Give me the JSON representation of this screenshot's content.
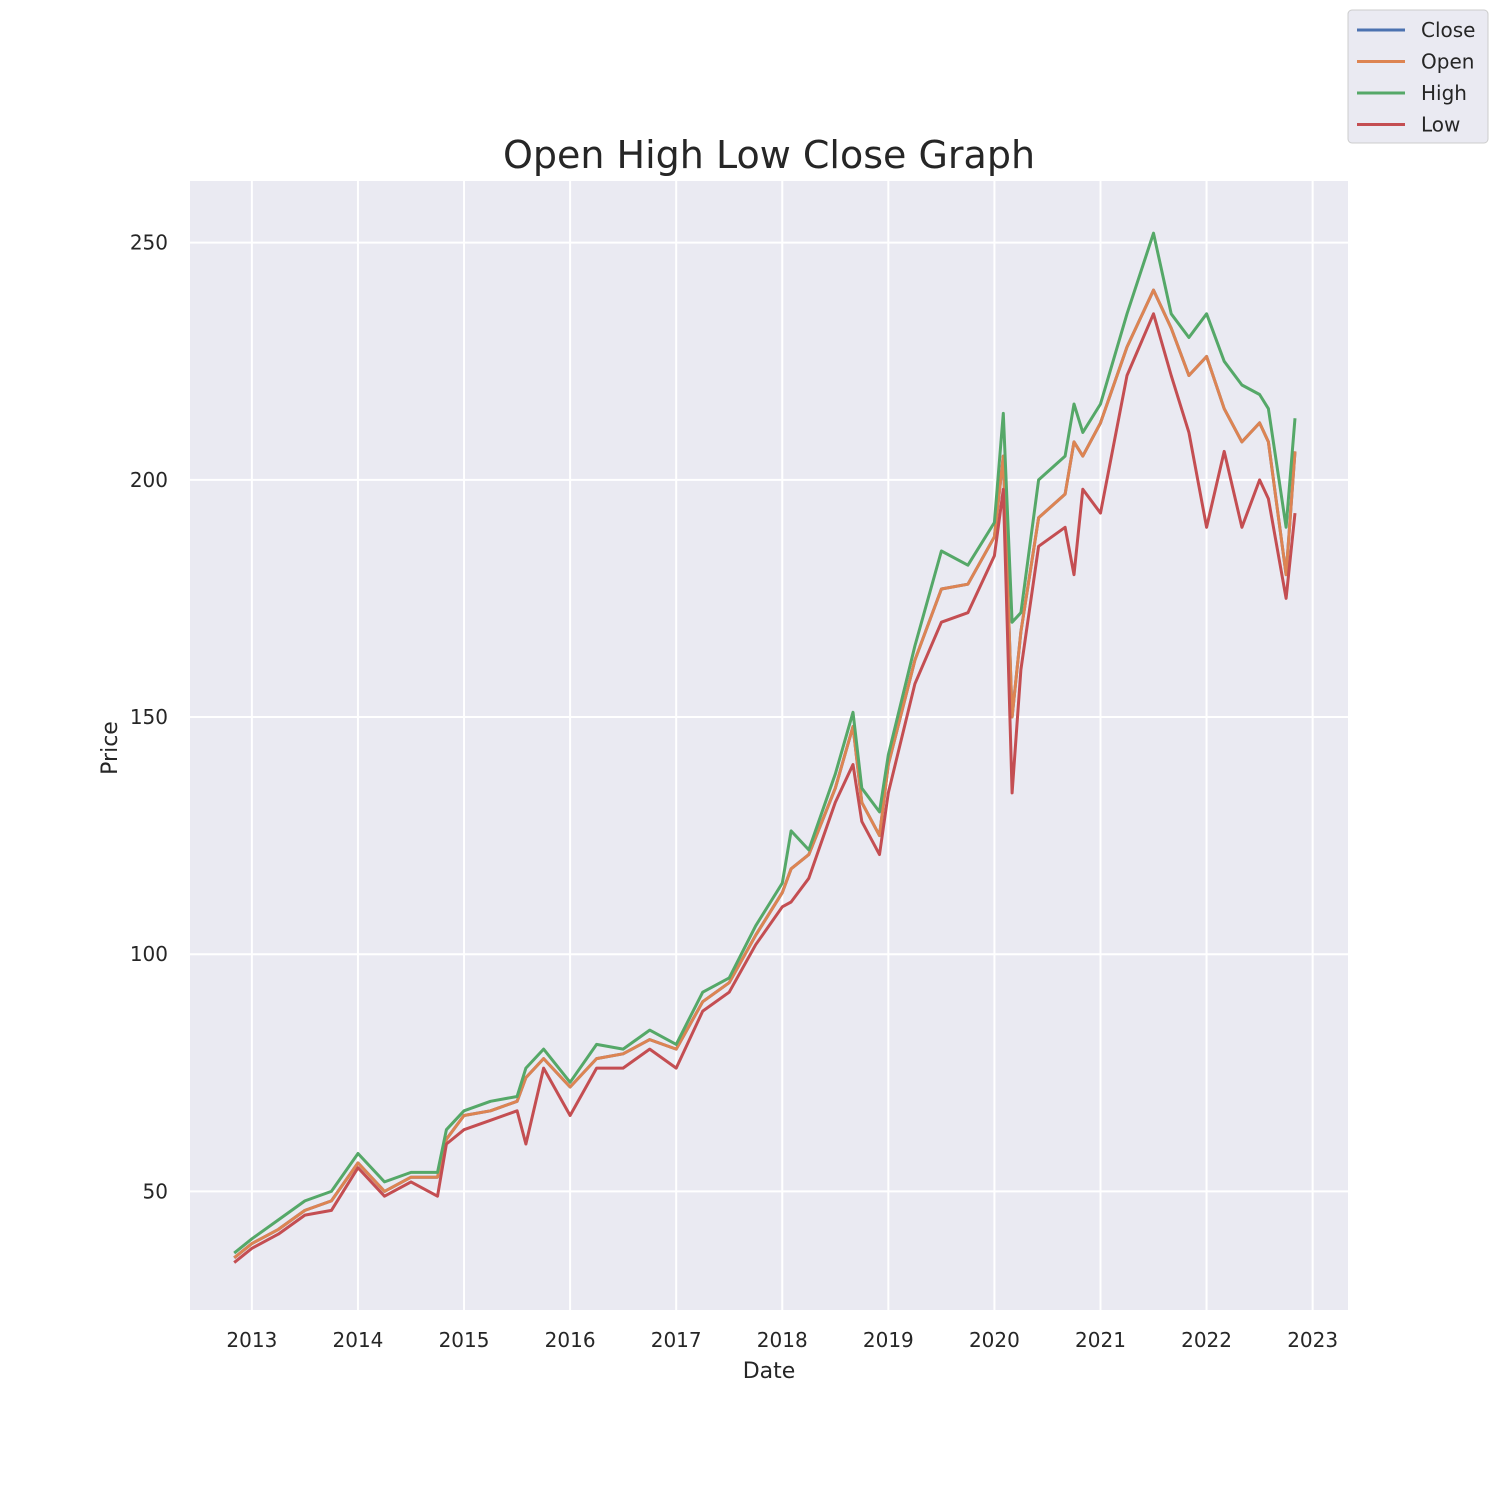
{
  "chart_data": {
    "type": "line",
    "title": "Open High Low Close Graph",
    "xlabel": "Date",
    "ylabel": "Price",
    "xlim": [
      "2012-06-01",
      "2023-05-01"
    ],
    "ylim": [
      25,
      263
    ],
    "x_ticks": [
      "2013",
      "2014",
      "2015",
      "2016",
      "2017",
      "2018",
      "2019",
      "2020",
      "2021",
      "2022",
      "2023"
    ],
    "y_ticks": [
      50,
      100,
      150,
      200,
      250
    ],
    "grid": true,
    "legend_position": "top-right",
    "x": [
      "2012-11",
      "2013-01",
      "2013-04",
      "2013-07",
      "2013-10",
      "2014-01",
      "2014-04",
      "2014-07",
      "2014-10",
      "2014-11",
      "2015-01",
      "2015-04",
      "2015-07",
      "2015-08",
      "2015-10",
      "2016-01",
      "2016-04",
      "2016-07",
      "2016-10",
      "2017-01",
      "2017-04",
      "2017-07",
      "2017-10",
      "2018-01",
      "2018-02",
      "2018-04",
      "2018-07",
      "2018-09",
      "2018-10",
      "2018-12",
      "2019-01",
      "2019-04",
      "2019-07",
      "2019-10",
      "2020-01",
      "2020-02",
      "2020-03",
      "2020-04",
      "2020-06",
      "2020-09",
      "2020-10",
      "2020-11",
      "2021-01",
      "2021-04",
      "2021-07",
      "2021-09",
      "2021-11",
      "2022-01",
      "2022-03",
      "2022-05",
      "2022-07",
      "2022-08",
      "2022-10",
      "2022-11"
    ],
    "series": [
      {
        "name": "Close",
        "color": "#4c72b0",
        "values": [
          36,
          39,
          42,
          46,
          48,
          56,
          50,
          53,
          53,
          61,
          66,
          67,
          69,
          74,
          78,
          72,
          78,
          79,
          82,
          80,
          90,
          94,
          104,
          113,
          118,
          121,
          135,
          148,
          132,
          125,
          140,
          162,
          177,
          178,
          188,
          205,
          150,
          168,
          192,
          197,
          208,
          205,
          212,
          228,
          240,
          232,
          222,
          226,
          215,
          208,
          212,
          208,
          180,
          206
        ]
      },
      {
        "name": "Open",
        "color": "#dd8452",
        "values": [
          36,
          39,
          42,
          46,
          48,
          56,
          50,
          53,
          53,
          61,
          66,
          67,
          69,
          74,
          78,
          72,
          78,
          79,
          82,
          80,
          90,
          94,
          104,
          113,
          118,
          121,
          135,
          148,
          132,
          125,
          140,
          162,
          177,
          178,
          188,
          205,
          150,
          168,
          192,
          197,
          208,
          205,
          212,
          228,
          240,
          232,
          222,
          226,
          215,
          208,
          212,
          208,
          180,
          206
        ]
      },
      {
        "name": "High",
        "color": "#55a868",
        "values": [
          37,
          40,
          44,
          48,
          50,
          58,
          52,
          54,
          54,
          63,
          67,
          69,
          70,
          76,
          80,
          73,
          81,
          80,
          84,
          81,
          92,
          95,
          106,
          115,
          126,
          122,
          138,
          151,
          135,
          130,
          142,
          165,
          185,
          182,
          191,
          214,
          170,
          172,
          200,
          205,
          216,
          210,
          216,
          235,
          252,
          235,
          230,
          235,
          225,
          220,
          218,
          215,
          190,
          213
        ]
      },
      {
        "name": "Low",
        "color": "#c44e52",
        "values": [
          35,
          38,
          41,
          45,
          46,
          55,
          49,
          52,
          49,
          60,
          63,
          65,
          67,
          60,
          76,
          66,
          76,
          76,
          80,
          76,
          88,
          92,
          102,
          110,
          111,
          116,
          132,
          140,
          128,
          121,
          134,
          157,
          170,
          172,
          184,
          198,
          134,
          160,
          186,
          190,
          180,
          198,
          193,
          222,
          235,
          222,
          210,
          190,
          206,
          190,
          200,
          196,
          175,
          193
        ]
      }
    ]
  }
}
